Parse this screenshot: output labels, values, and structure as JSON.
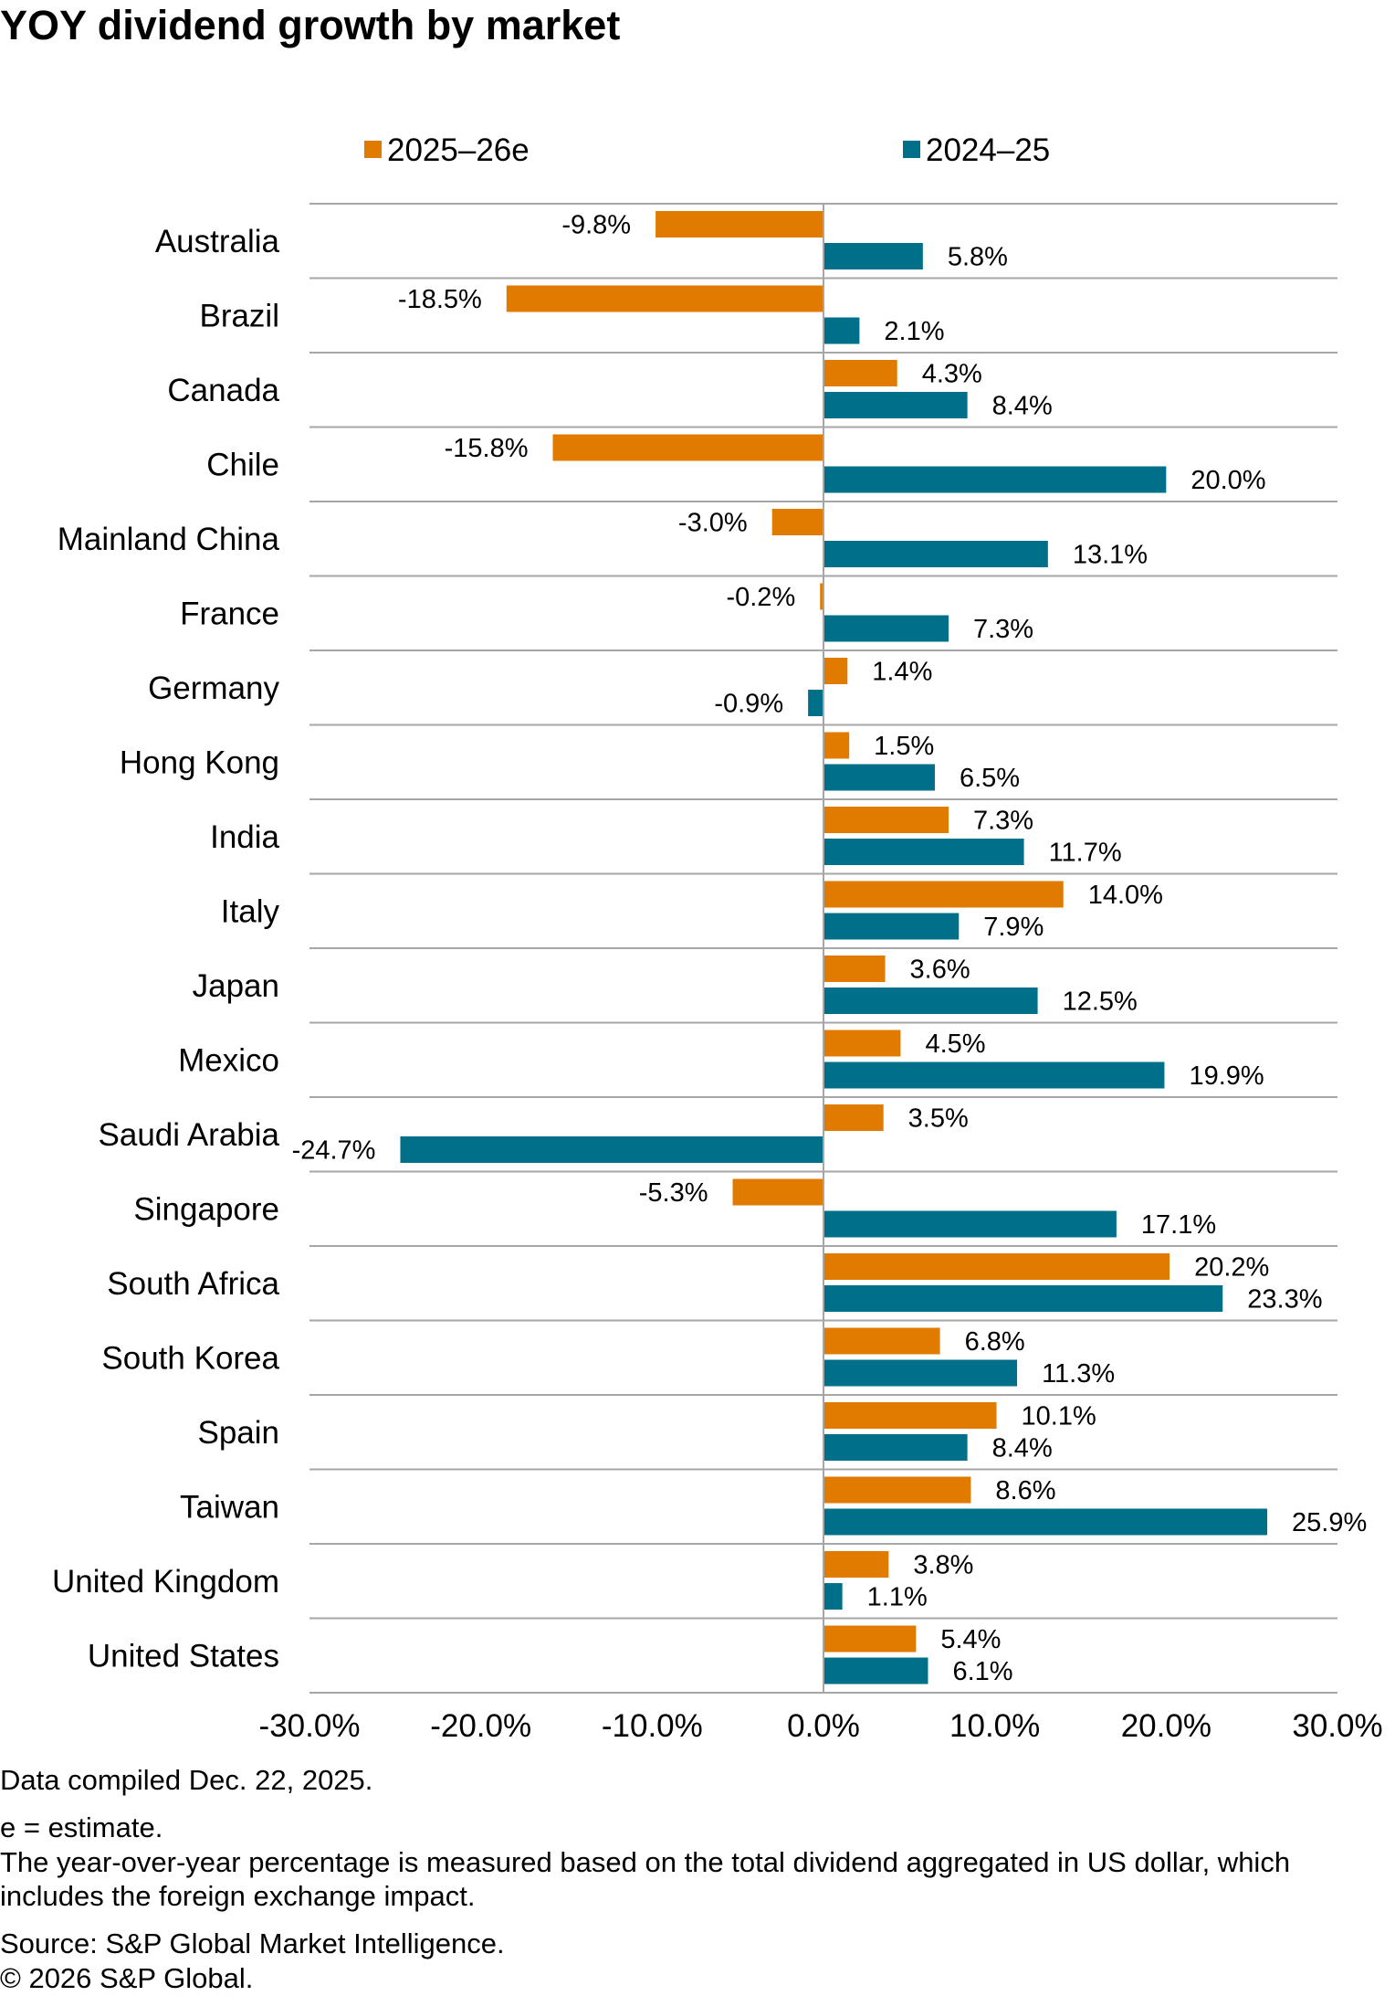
{
  "chart_data": {
    "type": "bar",
    "orientation": "horizontal",
    "title": "YOY dividend growth by market",
    "categories": [
      "Australia",
      "Brazil",
      "Canada",
      "Chile",
      "Mainland China",
      "France",
      "Germany",
      "Hong Kong",
      "India",
      "Italy",
      "Japan",
      "Mexico",
      "Saudi Arabia",
      "Singapore",
      "South Africa",
      "South Korea",
      "Spain",
      "Taiwan",
      "United Kingdom",
      "United States"
    ],
    "series": [
      {
        "name": "2025–26e",
        "color": "#E07B00",
        "values": [
          -9.8,
          -18.5,
          4.3,
          -15.8,
          -3.0,
          -0.2,
          1.4,
          1.5,
          7.3,
          14.0,
          3.6,
          4.5,
          3.5,
          -5.3,
          20.2,
          6.8,
          10.1,
          8.6,
          3.8,
          5.4
        ],
        "labels": [
          "-9.8%",
          "-18.5%",
          "4.3%",
          "-15.8%",
          "-3.0%",
          "-0.2%",
          "1.4%",
          "1.5%",
          "7.3%",
          "14.0%",
          "3.6%",
          "4.5%",
          "3.5%",
          "-5.3%",
          "20.2%",
          "6.8%",
          "10.1%",
          "8.6%",
          "3.8%",
          "5.4%"
        ]
      },
      {
        "name": "2024–25",
        "color": "#00708A",
        "values": [
          5.8,
          2.1,
          8.4,
          20.0,
          13.1,
          7.3,
          -0.9,
          6.5,
          11.7,
          7.9,
          12.5,
          19.9,
          -24.7,
          17.1,
          23.3,
          11.3,
          8.4,
          25.9,
          1.1,
          6.1
        ],
        "labels": [
          "5.8%",
          "2.1%",
          "8.4%",
          "20.0%",
          "13.1%",
          "7.3%",
          "-0.9%",
          "6.5%",
          "11.7%",
          "7.9%",
          "12.5%",
          "19.9%",
          "-24.7%",
          "17.1%",
          "23.3%",
          "11.3%",
          "8.4%",
          "25.9%",
          "1.1%",
          "6.1%"
        ]
      }
    ],
    "xlim": [
      -30,
      30
    ],
    "xticks": [
      -30,
      -20,
      -10,
      0,
      10,
      20,
      30
    ],
    "xtick_labels": [
      "-30.0%",
      "-20.0%",
      "-10.0%",
      "0.0%",
      "10.0%",
      "20.0%",
      "30.0%"
    ],
    "legend_position": "top"
  },
  "notes": {
    "compiled": "Data compiled Dec. 22, 2025.",
    "estimate": "e = estimate.",
    "description": "The year-over-year percentage is measured based on the total dividend aggregated in US dollar, which includes the foreign exchange impact.",
    "source": "Source: S&P Global Market Intelligence.",
    "copyright": "© 2026 S&P Global."
  }
}
